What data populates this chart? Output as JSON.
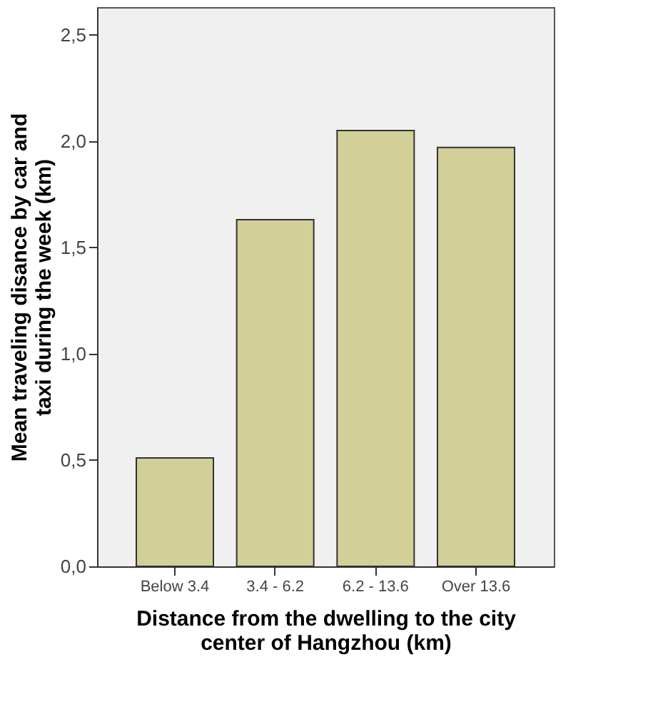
{
  "chart_data": {
    "type": "bar",
    "xlabel": "Distance from the dwelling to the city center of Hangzhou (km)",
    "ylabel": "Mean traveling disance by car and taxi during the week (km)",
    "categories": [
      "Below 3.4",
      "3.4 - 6.2",
      "6.2 - 13.6",
      "Over 13.6"
    ],
    "values": [
      0.51,
      1.63,
      2.05,
      1.97
    ],
    "color": "#d3cf98",
    "ylim": [
      0,
      2.63
    ],
    "yticks": [
      {
        "value": 0,
        "label": "0,0"
      },
      {
        "value": 0.5,
        "label": "0,5"
      },
      {
        "value": 1.0,
        "label": "1,0"
      },
      {
        "value": 1.5,
        "label": "1,5"
      },
      {
        "value": 2.0,
        "label": "2,0"
      },
      {
        "value": 2.5,
        "label": "2,5"
      }
    ],
    "grid": false
  }
}
